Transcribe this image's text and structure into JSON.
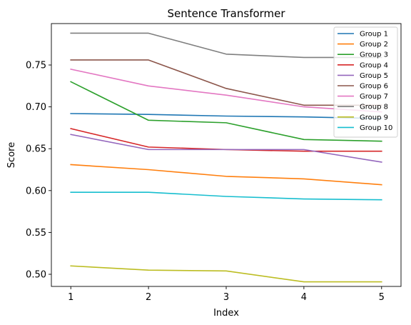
{
  "chart_data": {
    "type": "line",
    "title": "Sentence Transformer",
    "xlabel": "Index",
    "ylabel": "Score",
    "x": [
      1,
      2,
      3,
      4,
      5
    ],
    "xlim": [
      0.75,
      5.25
    ],
    "ylim": [
      0.4855,
      0.7995
    ],
    "yticks": [
      "0.50",
      "0.55",
      "0.60",
      "0.65",
      "0.70",
      "0.75"
    ],
    "ytick_values": [
      0.5,
      0.55,
      0.6,
      0.65,
      0.7,
      0.75
    ],
    "xticks": [
      "1",
      "2",
      "3",
      "4",
      "5"
    ],
    "legend_position": "top-right",
    "grid": false,
    "series": [
      {
        "name": "Group 1",
        "color": "#1f77b4",
        "values": [
          0.692,
          0.691,
          0.689,
          0.688,
          0.686
        ]
      },
      {
        "name": "Group 2",
        "color": "#ff7f0e",
        "values": [
          0.631,
          0.625,
          0.617,
          0.614,
          0.607
        ]
      },
      {
        "name": "Group 3",
        "color": "#2ca02c",
        "values": [
          0.73,
          0.684,
          0.681,
          0.661,
          0.659
        ]
      },
      {
        "name": "Group 4",
        "color": "#d62728",
        "values": [
          0.674,
          0.652,
          0.649,
          0.647,
          0.647
        ]
      },
      {
        "name": "Group 5",
        "color": "#9467bd",
        "values": [
          0.667,
          0.649,
          0.649,
          0.649,
          0.634
        ]
      },
      {
        "name": "Group 6",
        "color": "#8c564b",
        "values": [
          0.756,
          0.756,
          0.722,
          0.702,
          0.702
        ]
      },
      {
        "name": "Group 7",
        "color": "#e377c2",
        "values": [
          0.745,
          0.725,
          0.714,
          0.7,
          0.694
        ]
      },
      {
        "name": "Group 8",
        "color": "#7f7f7f",
        "values": [
          0.788,
          0.788,
          0.763,
          0.759,
          0.759
        ]
      },
      {
        "name": "Group 9",
        "color": "#bcbd22",
        "values": [
          0.51,
          0.505,
          0.504,
          0.491,
          0.491
        ]
      },
      {
        "name": "Group 10",
        "color": "#17becf",
        "values": [
          0.598,
          0.598,
          0.593,
          0.59,
          0.589
        ]
      }
    ]
  }
}
